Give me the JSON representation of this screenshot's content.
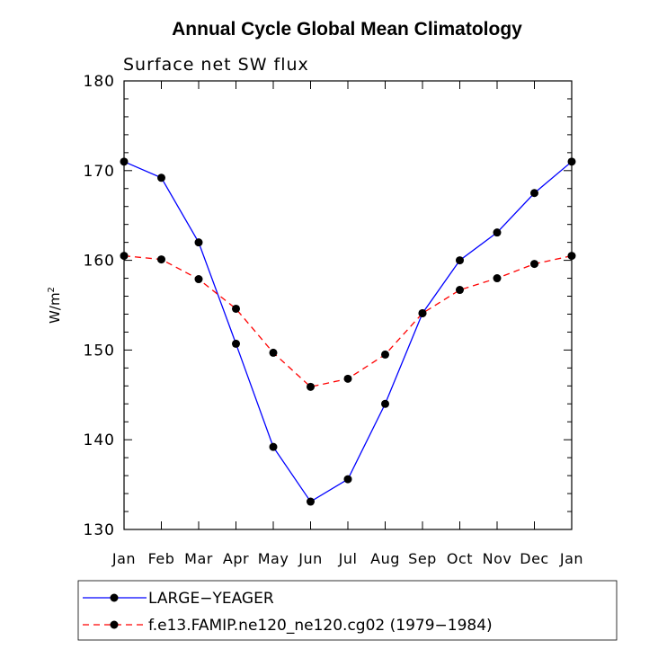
{
  "chart_data": {
    "type": "line",
    "title": "Annual Cycle Global Mean Climatology",
    "subtitle": "Surface net SW flux",
    "ylabel": "W/m",
    "ylabel_sup": "2",
    "ylim": [
      130,
      180
    ],
    "yticks": [
      130,
      140,
      150,
      160,
      170,
      180
    ],
    "categories": [
      "Jan",
      "Feb",
      "Mar",
      "Apr",
      "May",
      "Jun",
      "Jul",
      "Aug",
      "Sep",
      "Oct",
      "Nov",
      "Dec",
      "Jan"
    ],
    "series": [
      {
        "name": "LARGE−YEAGER",
        "color": "#0000ff",
        "dashed": false,
        "values": [
          171.0,
          169.2,
          162.0,
          150.7,
          139.2,
          133.1,
          135.6,
          144.0,
          154.1,
          160.0,
          163.1,
          167.5,
          171.0
        ]
      },
      {
        "name": "f.e13.FAMIP.ne120_ne120.cg02 (1979−1984)",
        "color": "#ff0000",
        "dashed": true,
        "values": [
          160.5,
          160.1,
          157.9,
          154.6,
          149.7,
          145.9,
          146.8,
          149.5,
          154.1,
          156.7,
          158.0,
          159.6,
          160.5
        ]
      }
    ],
    "legend_position": "bottom"
  }
}
